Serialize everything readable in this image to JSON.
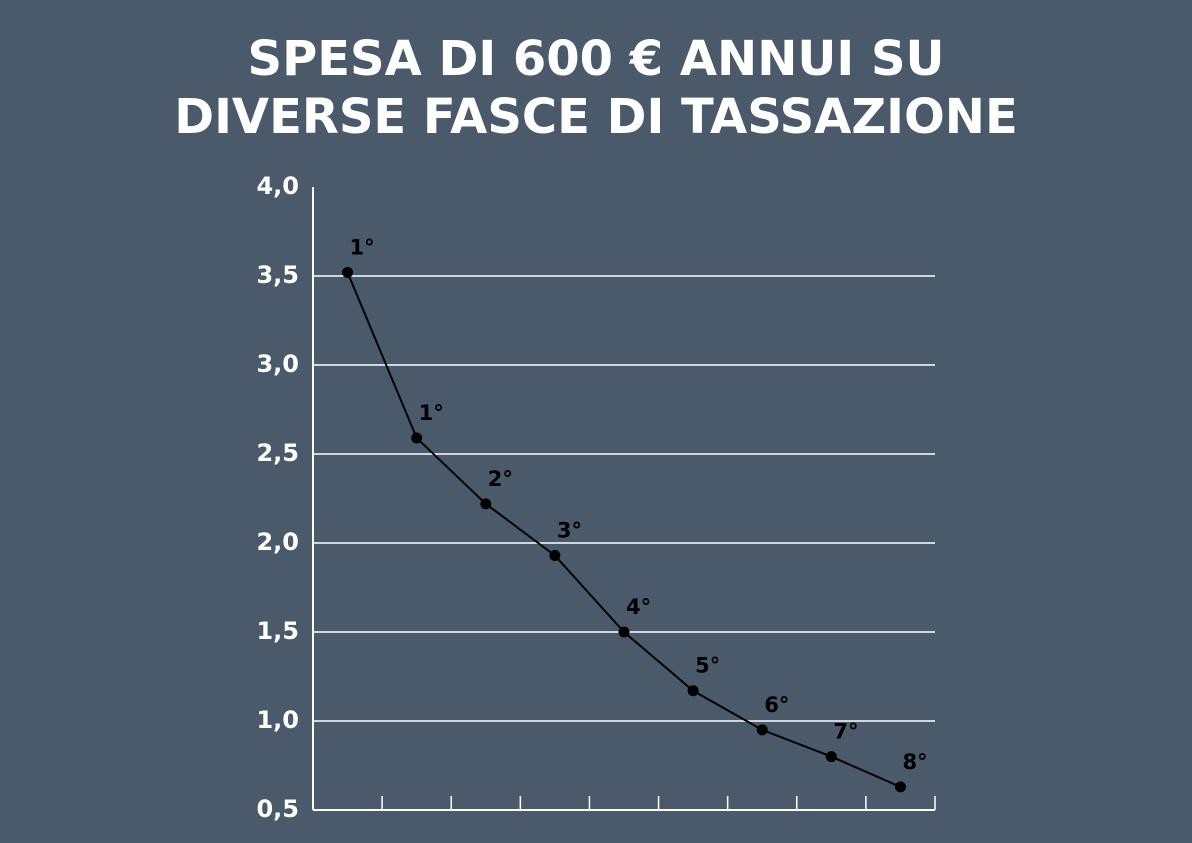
{
  "chart_data": {
    "type": "line",
    "title": [
      "SPESA DI 600 € ANNUI SU",
      "DIVERSE FASCE DI TASSAZIONE"
    ],
    "categories": [
      "1°",
      "1°",
      "2°",
      "3°",
      "4°",
      "5°",
      "6°",
      "7°",
      "8°"
    ],
    "values": [
      3.52,
      2.59,
      2.22,
      1.93,
      1.5,
      1.17,
      0.95,
      0.8,
      0.63
    ],
    "color": "#000000",
    "ylim": [
      0.5,
      4.0
    ],
    "yticks": [
      {
        "value": 0.5,
        "label": "0,5"
      },
      {
        "value": 1.0,
        "label": "1,0"
      },
      {
        "value": 1.5,
        "label": "1,5"
      },
      {
        "value": 2.0,
        "label": "2,0"
      },
      {
        "value": 2.5,
        "label": "2,5"
      },
      {
        "value": 3.0,
        "label": "3,0"
      },
      {
        "value": 3.5,
        "label": "3,5"
      },
      {
        "value": 4.0,
        "label": "4,0"
      }
    ],
    "grid": true
  }
}
